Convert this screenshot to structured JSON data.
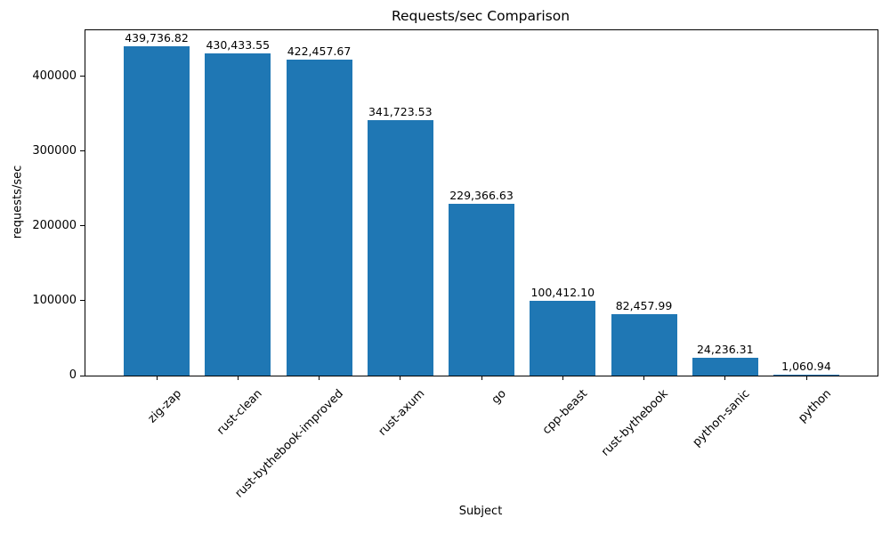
{
  "chart_data": {
    "type": "bar",
    "title": "Requests/sec Comparison",
    "xlabel": "Subject",
    "ylabel": "requests/sec",
    "categories": [
      "zig-zap",
      "rust-clean",
      "rust-bythebook-improved",
      "rust-axum",
      "go",
      "cpp-beast",
      "rust-bythebook",
      "python-sanic",
      "python"
    ],
    "values": [
      439736.82,
      430433.55,
      422457.67,
      341723.53,
      229366.63,
      100412.1,
      82457.99,
      24236.31,
      1060.94
    ],
    "value_labels": [
      "439,736.82",
      "430,433.55",
      "422,457.67",
      "341,723.53",
      "229,366.63",
      "100,412.10",
      "82,457.99",
      "24,236.31",
      "1,060.94"
    ],
    "ylim": [
      0,
      461724
    ],
    "yticks": [
      0,
      100000,
      200000,
      300000,
      400000
    ],
    "ytick_labels": [
      "0",
      "100000",
      "200000",
      "300000",
      "400000"
    ],
    "bar_color": "#1f77b4",
    "grid": "off",
    "legend": "none"
  }
}
